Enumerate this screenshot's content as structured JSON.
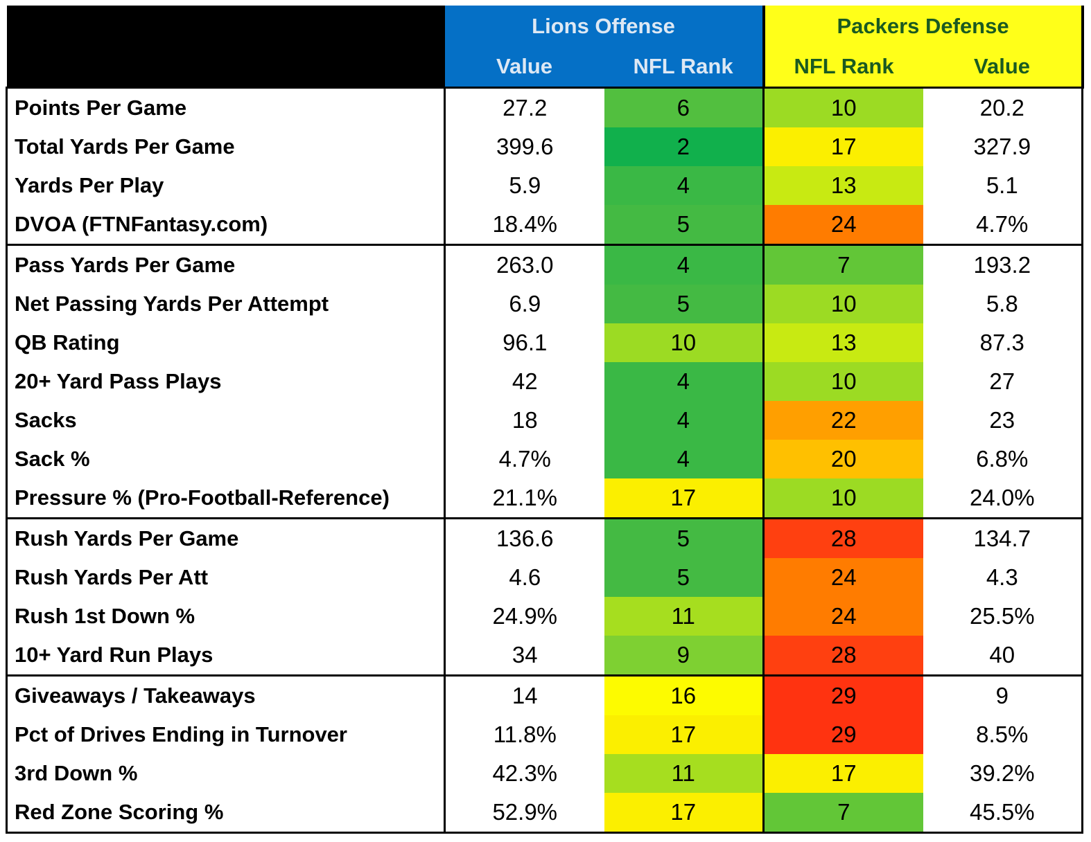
{
  "header": {
    "lions_title": "Lions Offense",
    "packers_title": "Packers Defense",
    "col_value": "Value",
    "col_nfl_rank": "NFL Rank",
    "col_nfl_rank_2": "NFL Rank",
    "col_value_2": "Value"
  },
  "rank_colors": {
    "2": "#11b04c",
    "4": "#3ab845",
    "5": "#44ba43",
    "6": "#52bf3f",
    "7": "#62c637",
    "9": "#7ed032",
    "10": "#9cdb23",
    "11": "#a6de1f",
    "13": "#c8ea12",
    "16": "#fdfb00",
    "17": "#fbef00",
    "20": "#ffc000",
    "22": "#ff9f00",
    "24": "#ff7c00",
    "28": "#ff4010",
    "29": "#ff3310"
  },
  "sections": [
    {
      "rows": [
        {
          "label": "Points Per Game",
          "lions_value": "27.2",
          "lions_rank": "6",
          "packers_rank": "10",
          "packers_value": "20.2"
        },
        {
          "label": "Total Yards Per Game",
          "lions_value": "399.6",
          "lions_rank": "2",
          "packers_rank": "17",
          "packers_value": "327.9"
        },
        {
          "label": "Yards Per Play",
          "lions_value": "5.9",
          "lions_rank": "4",
          "packers_rank": "13",
          "packers_value": "5.1"
        },
        {
          "label": "DVOA (FTNFantasy.com)",
          "lions_value": "18.4%",
          "lions_rank": "5",
          "packers_rank": "24",
          "packers_value": "4.7%"
        }
      ]
    },
    {
      "rows": [
        {
          "label": "Pass Yards Per Game",
          "lions_value": "263.0",
          "lions_rank": "4",
          "packers_rank": "7",
          "packers_value": "193.2"
        },
        {
          "label": "Net Passing Yards Per Attempt",
          "lions_value": "6.9",
          "lions_rank": "5",
          "packers_rank": "10",
          "packers_value": "5.8"
        },
        {
          "label": "QB Rating",
          "lions_value": "96.1",
          "lions_rank": "10",
          "packers_rank": "13",
          "packers_value": "87.3"
        },
        {
          "label": "20+ Yard Pass Plays",
          "lions_value": "42",
          "lions_rank": "4",
          "packers_rank": "10",
          "packers_value": "27"
        },
        {
          "label": "Sacks",
          "lions_value": "18",
          "lions_rank": "4",
          "packers_rank": "22",
          "packers_value": "23"
        },
        {
          "label": "Sack %",
          "lions_value": "4.7%",
          "lions_rank": "4",
          "packers_rank": "20",
          "packers_value": "6.8%"
        },
        {
          "label": "Pressure % (Pro-Football-Reference)",
          "lions_value": "21.1%",
          "lions_rank": "17",
          "packers_rank": "10",
          "packers_value": "24.0%"
        }
      ]
    },
    {
      "rows": [
        {
          "label": "Rush Yards Per Game",
          "lions_value": "136.6",
          "lions_rank": "5",
          "packers_rank": "28",
          "packers_value": "134.7"
        },
        {
          "label": "Rush Yards Per Att",
          "lions_value": "4.6",
          "lions_rank": "5",
          "packers_rank": "24",
          "packers_value": "4.3"
        },
        {
          "label": "Rush 1st Down %",
          "lions_value": "24.9%",
          "lions_rank": "11",
          "packers_rank": "24",
          "packers_value": "25.5%"
        },
        {
          "label": "10+ Yard Run Plays",
          "lions_value": "34",
          "lions_rank": "9",
          "packers_rank": "28",
          "packers_value": "40"
        }
      ]
    },
    {
      "rows": [
        {
          "label": "Giveaways / Takeaways",
          "lions_value": "14",
          "lions_rank": "16",
          "packers_rank": "29",
          "packers_value": "9"
        },
        {
          "label": "Pct of Drives Ending in Turnover",
          "lions_value": "11.8%",
          "lions_rank": "17",
          "packers_rank": "29",
          "packers_value": "8.5%"
        },
        {
          "label": "3rd Down %",
          "lions_value": "42.3%",
          "lions_rank": "11",
          "packers_rank": "17",
          "packers_value": "39.2%"
        },
        {
          "label": "Red Zone Scoring %",
          "lions_value": "52.9%",
          "lions_rank": "17",
          "packers_rank": "7",
          "packers_value": "45.5%"
        }
      ]
    }
  ]
}
